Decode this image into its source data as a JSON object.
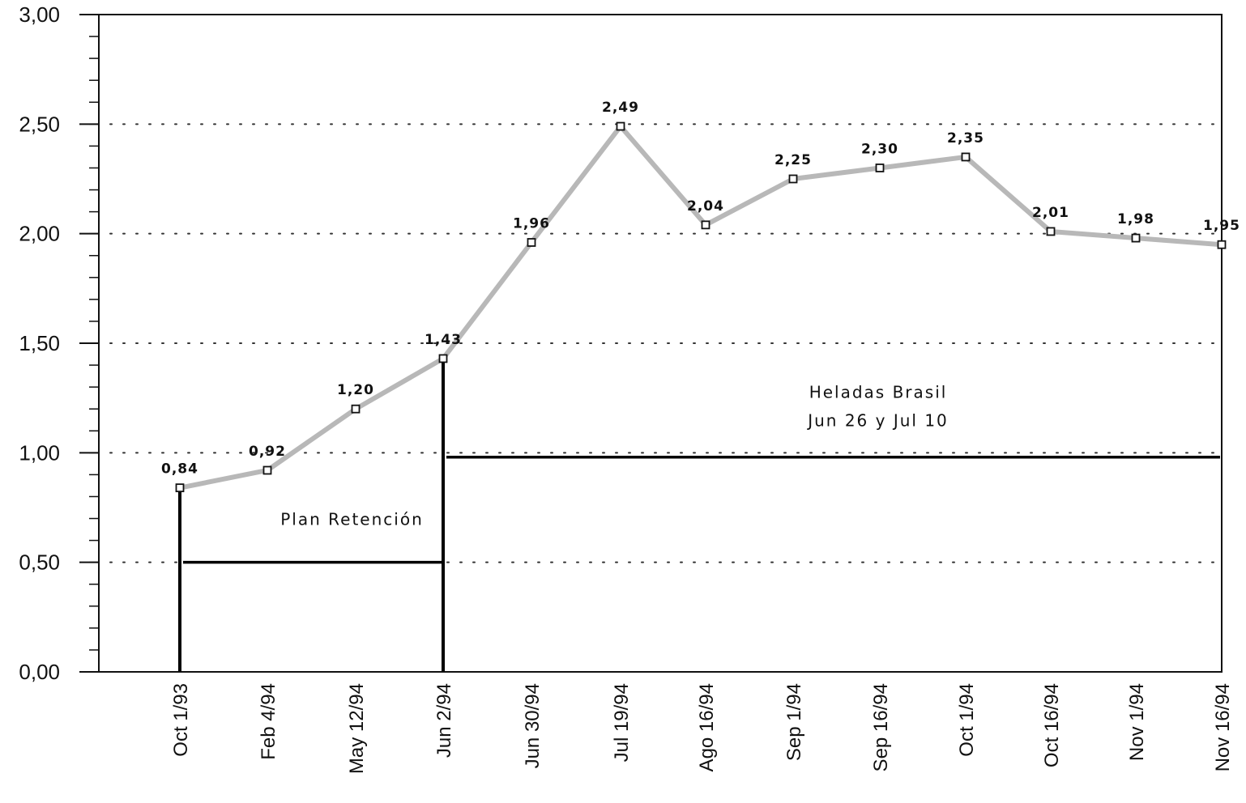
{
  "chart_data": {
    "type": "line",
    "title": "",
    "xlabel": "",
    "ylabel": "",
    "categories": [
      "Oct 1/93",
      "Feb 4/94",
      "May 12/94",
      "Jun 2/94",
      "Jun 30/94",
      "Jul 19/94",
      "Ago 16/94",
      "Sep 1/94",
      "Sep 16/94",
      "Oct 1/94",
      "Oct 16/94",
      "Nov 1/94",
      "Nov 16/94"
    ],
    "series": [
      {
        "values": [
          0.84,
          0.92,
          1.2,
          1.43,
          1.96,
          2.49,
          2.04,
          2.25,
          2.3,
          2.35,
          2.01,
          1.98,
          1.95
        ],
        "data_labels": [
          "0,84",
          "0,92",
          "1,20",
          "1,43",
          "1,96",
          "2,49",
          "2,04",
          "2,25",
          "2,30",
          "2,35",
          "2,01",
          "1,98",
          "1,95"
        ],
        "line_color": "#b8b8b8",
        "marker": "open-square"
      }
    ],
    "ylim": [
      0,
      3
    ],
    "yticks": [
      0,
      0.5,
      1,
      1.5,
      2,
      2.5,
      3
    ],
    "ytick_labels": [
      "0,00",
      "0,50",
      "1,00",
      "1,50",
      "2,00",
      "2,50",
      "3,00"
    ],
    "grid": "dotted horizontal",
    "legend": "none",
    "annotations": [
      {
        "text": "Plan Retención",
        "period_start": "Oct 1/93",
        "period_end": "Jun 2/94",
        "level": 0.5
      },
      {
        "text_lines": [
          "Heladas Brasil",
          "Jun 26 y Jul 10"
        ],
        "period_start": "Jun 2/94",
        "period_end": "Nov 16/94",
        "level": 0.98
      }
    ]
  }
}
